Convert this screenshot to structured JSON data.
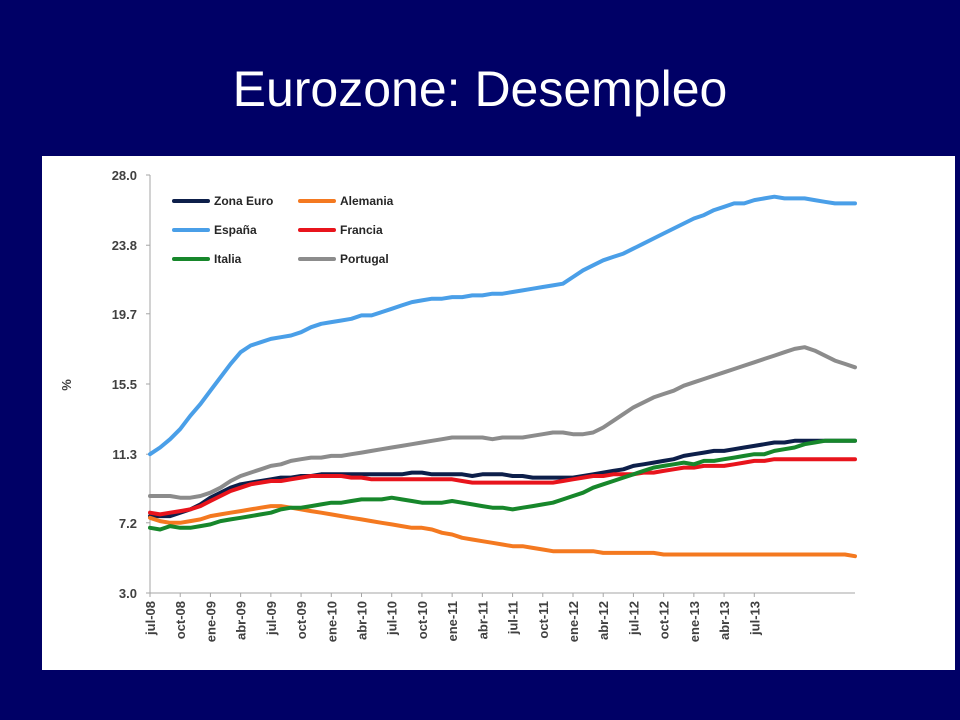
{
  "slide": {
    "title": "Eurozone: Desempleo"
  },
  "chart_data": {
    "type": "line",
    "title": "",
    "xlabel": "",
    "ylabel": "%",
    "ylim": [
      3.0,
      28.0
    ],
    "yticks": [
      "28.0",
      "23.8",
      "19.7",
      "15.5",
      "11.3",
      "7.2",
      "3.0"
    ],
    "x_labels": [
      "jul-08",
      "oct-08",
      "ene-09",
      "abr-09",
      "jul-09",
      "oct-09",
      "ene-10",
      "abr-10",
      "jul-10",
      "oct-10",
      "ene-11",
      "abr-11",
      "jul-11",
      "oct-11",
      "ene-12",
      "abr-12",
      "jul-12",
      "oct-12",
      "ene-13",
      "abr-13",
      "jul-13"
    ],
    "grid": false,
    "legend_position": "top-left",
    "series": [
      {
        "name": "Zona Euro",
        "color": "#0d1f4a",
        "values": [
          7.6,
          7.6,
          7.6,
          7.8,
          8.0,
          8.3,
          8.7,
          9.0,
          9.3,
          9.5,
          9.6,
          9.7,
          9.8,
          9.9,
          9.9,
          10.0,
          10.0,
          10.1,
          10.1,
          10.1,
          10.1,
          10.1,
          10.1,
          10.1,
          10.1,
          10.1,
          10.2,
          10.2,
          10.1,
          10.1,
          10.1,
          10.1,
          10.0,
          10.1,
          10.1,
          10.1,
          10.0,
          10.0,
          9.9,
          9.9,
          9.9,
          9.9,
          9.9,
          10.0,
          10.1,
          10.2,
          10.3,
          10.4,
          10.6,
          10.7,
          10.8,
          10.9,
          11.0,
          11.2,
          11.3,
          11.4,
          11.5,
          11.5,
          11.6,
          11.7,
          11.8,
          11.9,
          12.0,
          12.0,
          12.1,
          12.1,
          12.1,
          12.1,
          12.1,
          12.1,
          12.1
        ]
      },
      {
        "name": "Alemania",
        "color": "#f47920",
        "values": [
          7.5,
          7.3,
          7.2,
          7.2,
          7.3,
          7.4,
          7.6,
          7.7,
          7.8,
          7.9,
          8.0,
          8.1,
          8.2,
          8.2,
          8.1,
          8.0,
          7.9,
          7.8,
          7.7,
          7.6,
          7.5,
          7.4,
          7.3,
          7.2,
          7.1,
          7.0,
          6.9,
          6.9,
          6.8,
          6.6,
          6.5,
          6.3,
          6.2,
          6.1,
          6.0,
          5.9,
          5.8,
          5.8,
          5.7,
          5.6,
          5.5,
          5.5,
          5.5,
          5.5,
          5.5,
          5.4,
          5.4,
          5.4,
          5.4,
          5.4,
          5.4,
          5.3,
          5.3,
          5.3,
          5.3,
          5.3,
          5.3,
          5.3,
          5.3,
          5.3,
          5.3,
          5.3,
          5.3,
          5.3,
          5.3,
          5.3,
          5.3,
          5.3,
          5.3,
          5.3,
          5.2
        ]
      },
      {
        "name": "España",
        "color": "#4a9fe8",
        "values": [
          11.3,
          11.7,
          12.2,
          12.8,
          13.6,
          14.3,
          15.1,
          15.9,
          16.7,
          17.4,
          17.8,
          18.0,
          18.2,
          18.3,
          18.4,
          18.6,
          18.9,
          19.1,
          19.2,
          19.3,
          19.4,
          19.6,
          19.6,
          19.8,
          20.0,
          20.2,
          20.4,
          20.5,
          20.6,
          20.6,
          20.7,
          20.7,
          20.8,
          20.8,
          20.9,
          20.9,
          21.0,
          21.1,
          21.2,
          21.3,
          21.4,
          21.5,
          21.9,
          22.3,
          22.6,
          22.9,
          23.1,
          23.3,
          23.6,
          23.9,
          24.2,
          24.5,
          24.8,
          25.1,
          25.4,
          25.6,
          25.9,
          26.1,
          26.3,
          26.3,
          26.5,
          26.6,
          26.7,
          26.6,
          26.6,
          26.6,
          26.5,
          26.4,
          26.3,
          26.3,
          26.3
        ]
      },
      {
        "name": "Francia",
        "color": "#e8141c",
        "values": [
          7.8,
          7.7,
          7.8,
          7.9,
          8.0,
          8.2,
          8.5,
          8.8,
          9.1,
          9.3,
          9.5,
          9.6,
          9.7,
          9.7,
          9.8,
          9.9,
          10.0,
          10.0,
          10.0,
          10.0,
          9.9,
          9.9,
          9.8,
          9.8,
          9.8,
          9.8,
          9.8,
          9.8,
          9.8,
          9.8,
          9.8,
          9.7,
          9.6,
          9.6,
          9.6,
          9.6,
          9.6,
          9.6,
          9.6,
          9.6,
          9.6,
          9.7,
          9.8,
          9.9,
          10.0,
          10.0,
          10.1,
          10.1,
          10.1,
          10.2,
          10.2,
          10.3,
          10.4,
          10.5,
          10.5,
          10.6,
          10.6,
          10.6,
          10.7,
          10.8,
          10.9,
          10.9,
          11.0,
          11.0,
          11.0,
          11.0,
          11.0,
          11.0,
          11.0,
          11.0,
          11.0
        ]
      },
      {
        "name": "Italia",
        "color": "#17872b",
        "values": [
          6.9,
          6.8,
          7.0,
          6.9,
          6.9,
          7.0,
          7.1,
          7.3,
          7.4,
          7.5,
          7.6,
          7.7,
          7.8,
          8.0,
          8.1,
          8.1,
          8.2,
          8.3,
          8.4,
          8.4,
          8.5,
          8.6,
          8.6,
          8.6,
          8.7,
          8.6,
          8.5,
          8.4,
          8.4,
          8.4,
          8.5,
          8.4,
          8.3,
          8.2,
          8.1,
          8.1,
          8.0,
          8.1,
          8.2,
          8.3,
          8.4,
          8.6,
          8.8,
          9.0,
          9.3,
          9.5,
          9.7,
          9.9,
          10.1,
          10.3,
          10.5,
          10.6,
          10.7,
          10.8,
          10.7,
          10.9,
          10.9,
          11.0,
          11.1,
          11.2,
          11.3,
          11.3,
          11.5,
          11.6,
          11.7,
          11.9,
          12.0,
          12.1,
          12.1,
          12.1,
          12.1
        ]
      },
      {
        "name": "Portugal",
        "color": "#8c8c8c",
        "values": [
          8.8,
          8.8,
          8.8,
          8.7,
          8.7,
          8.8,
          9.0,
          9.3,
          9.7,
          10.0,
          10.2,
          10.4,
          10.6,
          10.7,
          10.9,
          11.0,
          11.1,
          11.1,
          11.2,
          11.2,
          11.3,
          11.4,
          11.5,
          11.6,
          11.7,
          11.8,
          11.9,
          12.0,
          12.1,
          12.2,
          12.3,
          12.3,
          12.3,
          12.3,
          12.2,
          12.3,
          12.3,
          12.3,
          12.4,
          12.5,
          12.6,
          12.6,
          12.5,
          12.5,
          12.6,
          12.9,
          13.3,
          13.7,
          14.1,
          14.4,
          14.7,
          14.9,
          15.1,
          15.4,
          15.6,
          15.8,
          16.0,
          16.2,
          16.4,
          16.6,
          16.8,
          17.0,
          17.2,
          17.4,
          17.6,
          17.7,
          17.5,
          17.2,
          16.9,
          16.7,
          16.5
        ]
      }
    ]
  }
}
